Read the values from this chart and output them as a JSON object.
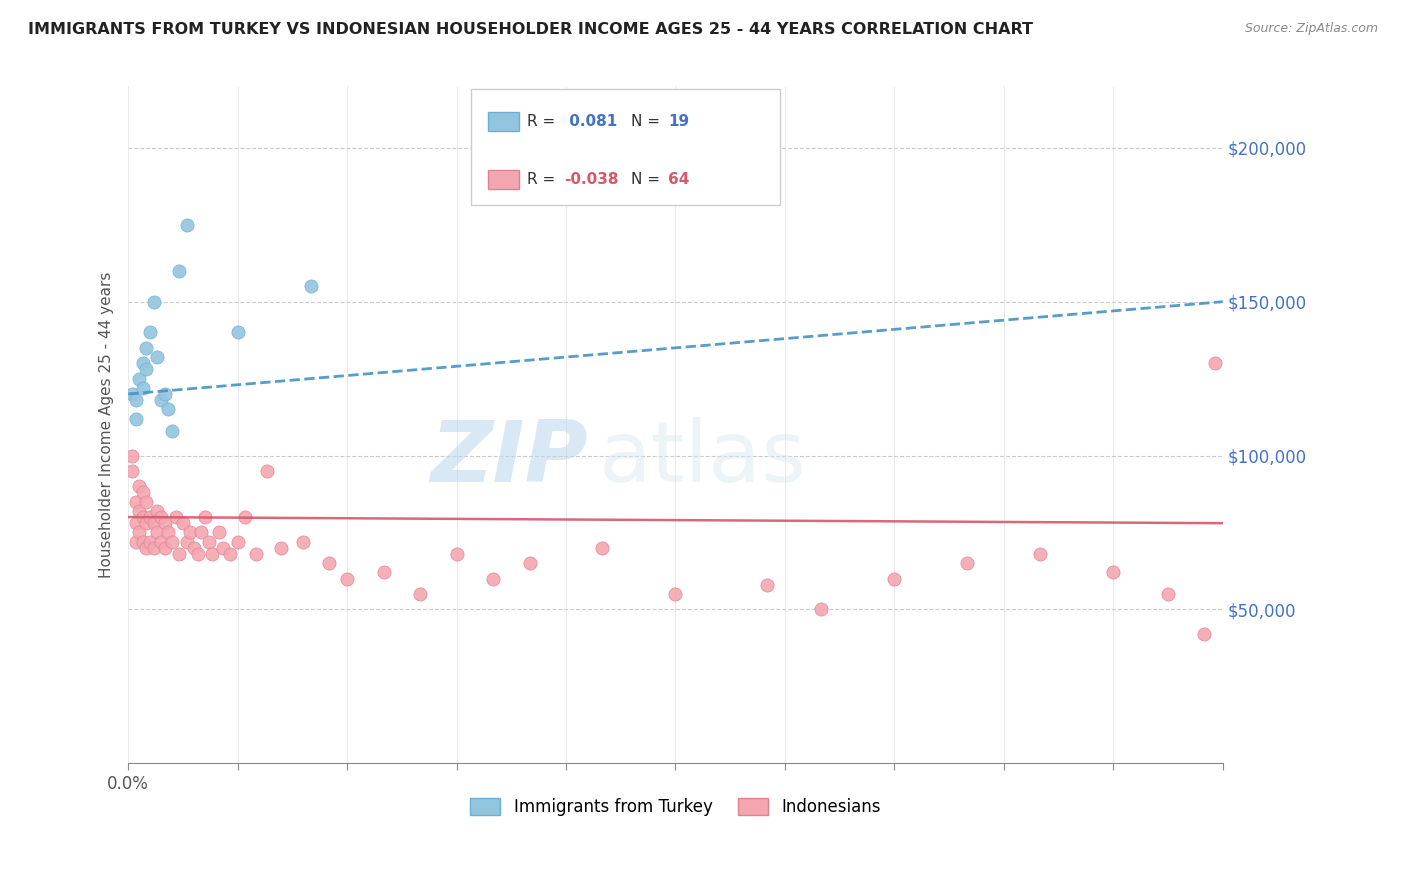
{
  "title": "IMMIGRANTS FROM TURKEY VS INDONESIAN HOUSEHOLDER INCOME AGES 25 - 44 YEARS CORRELATION CHART",
  "source": "Source: ZipAtlas.com",
  "ylabel": "Householder Income Ages 25 - 44 years",
  "xlim": [
    0,
    0.3
  ],
  "ylim": [
    0,
    220000
  ],
  "xticks": [
    0.0,
    0.03,
    0.06,
    0.09,
    0.12,
    0.15,
    0.18,
    0.21,
    0.24,
    0.27,
    0.3
  ],
  "xticklabels_sparse": {
    "0.0": "0.0%"
  },
  "yticks": [
    0,
    50000,
    100000,
    150000,
    200000
  ],
  "yticklabels": [
    "",
    "$50,000",
    "$100,000",
    "$150,000",
    "$200,000"
  ],
  "color_turkey": "#92c5de",
  "color_indonesia": "#f4a6b0",
  "color_trend_turkey": "#4393c3",
  "color_trend_indonesia": "#d6586a",
  "watermark_zip": "ZIP",
  "watermark_atlas": "atlas",
  "turkey_x": [
    0.001,
    0.002,
    0.002,
    0.003,
    0.004,
    0.004,
    0.005,
    0.005,
    0.006,
    0.007,
    0.008,
    0.009,
    0.01,
    0.011,
    0.012,
    0.014,
    0.016,
    0.03,
    0.05
  ],
  "turkey_y": [
    120000,
    118000,
    112000,
    125000,
    130000,
    122000,
    135000,
    128000,
    140000,
    150000,
    132000,
    118000,
    120000,
    115000,
    108000,
    160000,
    175000,
    140000,
    155000
  ],
  "indonesia_x": [
    0.001,
    0.001,
    0.002,
    0.002,
    0.002,
    0.003,
    0.003,
    0.003,
    0.004,
    0.004,
    0.004,
    0.005,
    0.005,
    0.005,
    0.006,
    0.006,
    0.007,
    0.007,
    0.008,
    0.008,
    0.009,
    0.009,
    0.01,
    0.01,
    0.011,
    0.012,
    0.013,
    0.014,
    0.015,
    0.016,
    0.017,
    0.018,
    0.019,
    0.02,
    0.021,
    0.022,
    0.023,
    0.025,
    0.026,
    0.028,
    0.03,
    0.032,
    0.035,
    0.038,
    0.042,
    0.048,
    0.055,
    0.06,
    0.07,
    0.08,
    0.09,
    0.1,
    0.11,
    0.13,
    0.15,
    0.175,
    0.19,
    0.21,
    0.23,
    0.25,
    0.27,
    0.285,
    0.295,
    0.298
  ],
  "indonesia_y": [
    100000,
    95000,
    85000,
    78000,
    72000,
    90000,
    82000,
    75000,
    88000,
    80000,
    72000,
    85000,
    78000,
    70000,
    80000,
    72000,
    78000,
    70000,
    82000,
    75000,
    80000,
    72000,
    78000,
    70000,
    75000,
    72000,
    80000,
    68000,
    78000,
    72000,
    75000,
    70000,
    68000,
    75000,
    80000,
    72000,
    68000,
    75000,
    70000,
    68000,
    72000,
    80000,
    68000,
    95000,
    70000,
    72000,
    65000,
    60000,
    62000,
    55000,
    68000,
    60000,
    65000,
    70000,
    55000,
    58000,
    50000,
    60000,
    65000,
    68000,
    62000,
    55000,
    42000,
    130000
  ]
}
